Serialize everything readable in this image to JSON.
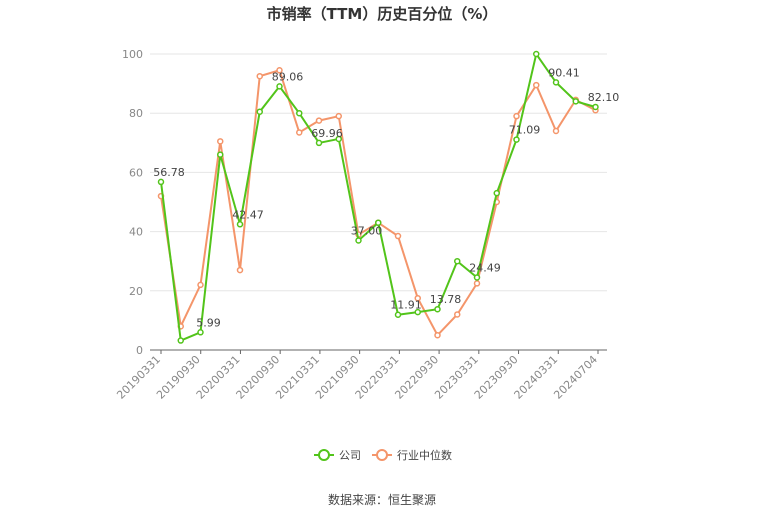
{
  "chart_data": {
    "type": "line",
    "title": "市销率（TTM）历史百分位（%）",
    "x_tick_labels": [
      "20190331",
      "20190930",
      "20200331",
      "20200930",
      "20210331",
      "20210930",
      "20220331",
      "20220930",
      "20230331",
      "20230930",
      "20240331",
      "20240704"
    ],
    "ylim": [
      0,
      100
    ],
    "y_ticks": [
      0,
      20,
      40,
      60,
      80,
      100
    ],
    "grid": true,
    "legend_position": "bottom",
    "series": [
      {
        "name": "公司",
        "color": "#52c41a",
        "values": [
          56.78,
          3.2,
          5.99,
          66.0,
          42.47,
          80.5,
          89.06,
          80.0,
          69.96,
          71.3,
          37.0,
          43.0,
          11.91,
          12.8,
          13.78,
          30.0,
          24.49,
          53.0,
          71.09,
          100.0,
          90.41,
          84.0,
          82.1
        ],
        "labels": {
          "0": "56.78",
          "2": "5.99",
          "4": "42.47",
          "6": "89.06",
          "8": "69.96",
          "10": "37.00",
          "12": "11.91",
          "14": "13.78",
          "16": "24.49",
          "18": "71.09",
          "20": "90.41",
          "22": "82.10"
        }
      },
      {
        "name": "行业中位数",
        "color": "#f4956a",
        "values": [
          52.0,
          8.0,
          22.0,
          70.5,
          27.0,
          92.5,
          94.5,
          73.5,
          77.5,
          79.0,
          39.0,
          43.0,
          38.5,
          17.5,
          5.0,
          12.0,
          22.5,
          50.0,
          79.0,
          89.5,
          74.0,
          84.5,
          81.0
        ]
      }
    ]
  },
  "legend": {
    "company_label": "公司",
    "industry_label": "行业中位数"
  },
  "footer": {
    "source_text": "数据来源：恒生聚源"
  }
}
